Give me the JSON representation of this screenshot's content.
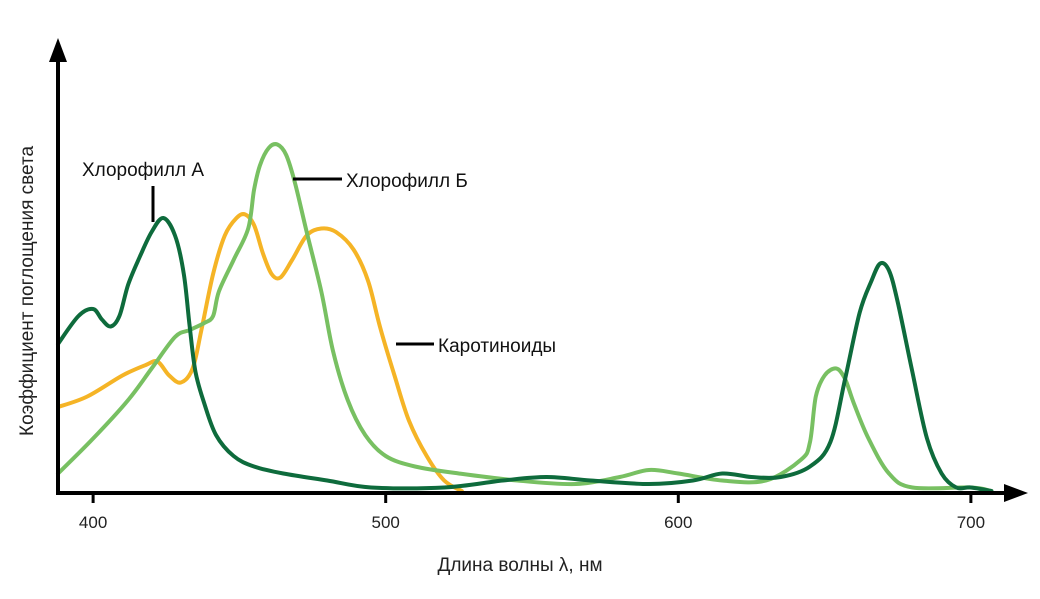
{
  "chart_data": {
    "type": "line",
    "title": "",
    "xlabel": "Длина волны λ, нм",
    "ylabel": "Коэффициент поглощения света",
    "xlim": [
      388,
      712
    ],
    "ylim": [
      0,
      100
    ],
    "x_ticks": [
      400,
      500,
      600,
      700
    ],
    "x_tick_labels": [
      "400",
      "500",
      "600",
      "700"
    ],
    "grid": false,
    "series": [
      {
        "name": "Хлорофилл А",
        "label": "Хлорофилл А",
        "color": "#0e6b3c",
        "points": [
          [
            388,
            42
          ],
          [
            395,
            50
          ],
          [
            400,
            52
          ],
          [
            403,
            49
          ],
          [
            406,
            47
          ],
          [
            409,
            50
          ],
          [
            412,
            59
          ],
          [
            416,
            67
          ],
          [
            420,
            74
          ],
          [
            424,
            78
          ],
          [
            428,
            73
          ],
          [
            431,
            62
          ],
          [
            433,
            47
          ],
          [
            435,
            34
          ],
          [
            438,
            25
          ],
          [
            442,
            16
          ],
          [
            448,
            10
          ],
          [
            455,
            7
          ],
          [
            465,
            5
          ],
          [
            480,
            3
          ],
          [
            495,
            1
          ],
          [
            520,
            1
          ],
          [
            540,
            3
          ],
          [
            555,
            4
          ],
          [
            570,
            3
          ],
          [
            590,
            2
          ],
          [
            605,
            3
          ],
          [
            615,
            5
          ],
          [
            625,
            4
          ],
          [
            635,
            4
          ],
          [
            645,
            7
          ],
          [
            652,
            14
          ],
          [
            657,
            32
          ],
          [
            662,
            51
          ],
          [
            666,
            60
          ],
          [
            669,
            65
          ],
          [
            672,
            63
          ],
          [
            675,
            54
          ],
          [
            680,
            34
          ],
          [
            685,
            15
          ],
          [
            690,
            5
          ],
          [
            695,
            1
          ],
          [
            700,
            1
          ],
          [
            707,
            0
          ]
        ]
      },
      {
        "name": "Хлорофилл Б",
        "label": "Хлорофилл Б",
        "color": "#78c062",
        "points": [
          [
            388,
            5
          ],
          [
            400,
            15
          ],
          [
            412,
            26
          ],
          [
            420,
            35
          ],
          [
            428,
            44
          ],
          [
            433,
            46
          ],
          [
            438,
            48
          ],
          [
            441,
            50
          ],
          [
            443,
            57
          ],
          [
            448,
            66
          ],
          [
            453,
            75
          ],
          [
            455,
            86
          ],
          [
            457,
            93
          ],
          [
            460,
            98
          ],
          [
            463,
            99
          ],
          [
            466,
            96
          ],
          [
            469,
            88
          ],
          [
            473,
            74
          ],
          [
            478,
            57
          ],
          [
            482,
            40
          ],
          [
            487,
            26
          ],
          [
            493,
            16
          ],
          [
            500,
            10
          ],
          [
            510,
            7
          ],
          [
            525,
            5
          ],
          [
            545,
            3
          ],
          [
            565,
            2
          ],
          [
            580,
            4
          ],
          [
            590,
            6
          ],
          [
            600,
            5
          ],
          [
            615,
            3
          ],
          [
            630,
            3
          ],
          [
            642,
            9
          ],
          [
            645,
            14
          ],
          [
            647,
            27
          ],
          [
            650,
            33
          ],
          [
            654,
            35
          ],
          [
            657,
            32
          ],
          [
            660,
            25
          ],
          [
            665,
            15
          ],
          [
            672,
            5
          ],
          [
            680,
            1
          ],
          [
            700,
            1
          ],
          [
            707,
            0
          ]
        ]
      },
      {
        "name": "Каротиноиды",
        "label": "Каротиноиды",
        "color": "#f5b426",
        "points": [
          [
            388,
            24
          ],
          [
            398,
            27
          ],
          [
            410,
            33
          ],
          [
            418,
            36
          ],
          [
            422,
            37
          ],
          [
            426,
            33
          ],
          [
            430,
            31
          ],
          [
            434,
            35
          ],
          [
            437,
            46
          ],
          [
            441,
            62
          ],
          [
            445,
            73
          ],
          [
            449,
            78
          ],
          [
            452,
            79
          ],
          [
            455,
            76
          ],
          [
            458,
            68
          ],
          [
            461,
            62
          ],
          [
            464,
            61
          ],
          [
            468,
            66
          ],
          [
            473,
            73
          ],
          [
            478,
            75
          ],
          [
            483,
            74
          ],
          [
            489,
            69
          ],
          [
            494,
            60
          ],
          [
            498,
            47
          ],
          [
            503,
            33
          ],
          [
            508,
            20
          ],
          [
            514,
            10
          ],
          [
            520,
            3
          ],
          [
            526,
            0
          ]
        ]
      }
    ]
  }
}
